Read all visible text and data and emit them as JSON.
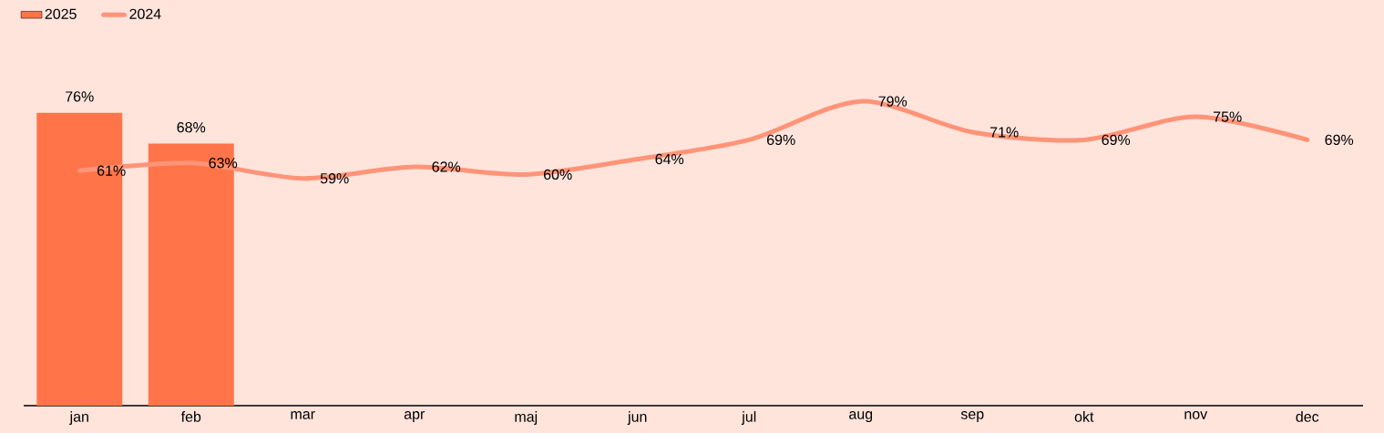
{
  "chart_data": {
    "type": "bar",
    "categories": [
      "jan",
      "feb",
      "mar",
      "apr",
      "maj",
      "jun",
      "jul",
      "aug",
      "sep",
      "okt",
      "nov",
      "dec"
    ],
    "series": [
      {
        "name": "2025",
        "color": "#ff7549",
        "values": [
          76,
          68,
          null,
          null,
          null,
          null,
          null,
          null,
          null,
          null,
          null,
          null
        ],
        "value_labels": [
          "76%",
          "68%",
          null,
          null,
          null,
          null,
          null,
          null,
          null,
          null,
          null,
          null
        ]
      },
      {
        "name": "2024",
        "type": "line",
        "color": "#ff9478",
        "values": [
          61,
          63,
          59,
          62,
          60,
          64,
          69,
          79,
          71,
          69,
          75,
          69
        ],
        "value_labels": [
          "61%",
          "63%",
          "59%",
          "62%",
          "60%",
          "64%",
          "69%",
          "79%",
          "71%",
          "69%",
          "75%",
          "69%"
        ]
      }
    ],
    "legend": "top left"
  }
}
